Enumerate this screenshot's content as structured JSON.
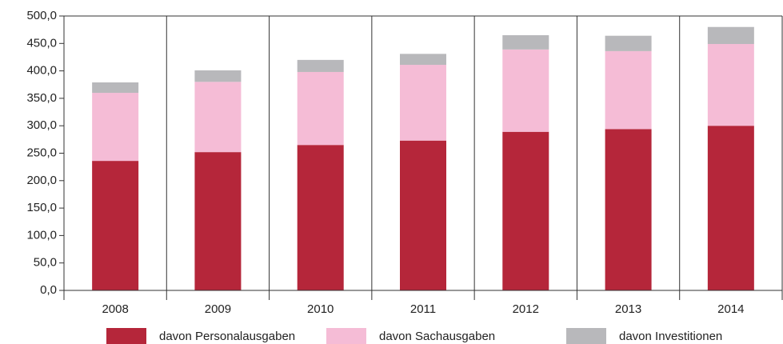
{
  "chart_data": {
    "type": "stacked_bar",
    "categories": [
      "2008",
      "2009",
      "2010",
      "2011",
      "2012",
      "2013",
      "2014"
    ],
    "series": [
      {
        "name": "davon Personalausgaben",
        "color": "#b5263a",
        "values": [
          236,
          252,
          265,
          273,
          289,
          294,
          300
        ]
      },
      {
        "name": "davon Sachausgaben",
        "color": "#f5bcd6",
        "values": [
          124,
          128,
          133,
          138,
          150,
          142,
          149
        ]
      },
      {
        "name": "davon Investitionen",
        "color": "#b8b8bb",
        "values": [
          19,
          21,
          22,
          20,
          26,
          28,
          31
        ]
      }
    ],
    "ylim": [
      0,
      500
    ],
    "yticks": [
      {
        "value": 0,
        "label": "0,0"
      },
      {
        "value": 50,
        "label": "50,0"
      },
      {
        "value": 100,
        "label": "100,0"
      },
      {
        "value": 150,
        "label": "150,0"
      },
      {
        "value": 200,
        "label": "200,0"
      },
      {
        "value": 250,
        "label": "250,0"
      },
      {
        "value": 300,
        "label": "300,0"
      },
      {
        "value": 350,
        "label": "350,0"
      },
      {
        "value": 400,
        "label": "400,0"
      },
      {
        "value": 450,
        "label": "450,0"
      },
      {
        "value": 500,
        "label": "500,0"
      }
    ],
    "legend": "bottom"
  }
}
